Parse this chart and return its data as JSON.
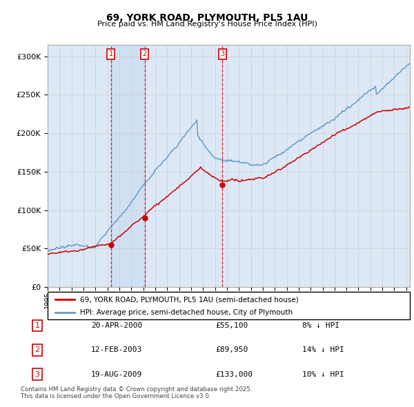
{
  "title": "69, YORK ROAD, PLYMOUTH, PL5 1AU",
  "subtitle": "Price paid vs. HM Land Registry's House Price Index (HPI)",
  "ylabel_ticks": [
    "£0",
    "£50K",
    "£100K",
    "£150K",
    "£200K",
    "£250K",
    "£300K"
  ],
  "ytick_values": [
    0,
    50000,
    100000,
    150000,
    200000,
    250000,
    300000
  ],
  "ylim": [
    0,
    315000
  ],
  "xlim_start": 1995.0,
  "xlim_end": 2025.3,
  "sale_dates": [
    2000.3,
    2003.12,
    2009.63
  ],
  "sale_prices": [
    55100,
    89950,
    133000
  ],
  "sale_labels": [
    "1",
    "2",
    "3"
  ],
  "annotation_rows": [
    {
      "num": "1",
      "date": "20-APR-2000",
      "price": "£55,100",
      "pct": "8% ↓ HPI"
    },
    {
      "num": "2",
      "date": "12-FEB-2003",
      "price": "£89,950",
      "pct": "14% ↓ HPI"
    },
    {
      "num": "3",
      "date": "19-AUG-2009",
      "price": "£133,000",
      "pct": "10% ↓ HPI"
    }
  ],
  "legend_line1": "69, YORK ROAD, PLYMOUTH, PL5 1AU (semi-detached house)",
  "legend_line2": "HPI: Average price, semi-detached house, City of Plymouth",
  "footer": "Contains HM Land Registry data © Crown copyright and database right 2025.\nThis data is licensed under the Open Government Licence v3.0.",
  "line_color_red": "#cc0000",
  "line_color_blue": "#6699cc",
  "vline_color": "#cc0000",
  "grid_color": "#cccccc",
  "background_color": "#dce8f5"
}
